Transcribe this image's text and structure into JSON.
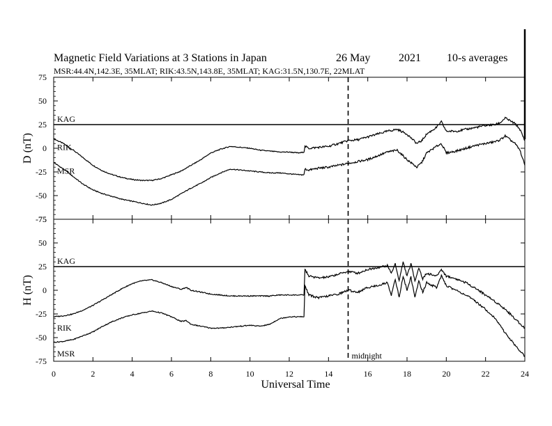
{
  "header": {
    "title_main": "Magnetic Field Variations at 3 Stations in Japan",
    "title_date": "26 May",
    "title_year": "2021",
    "title_avg": "10-s averages",
    "stations_line": "MSR:44.4N,142.3E, 35MLAT;  RIK:43.5N,143.8E, 35MLAT;  KAG:31.5N,130.7E, 22MLAT"
  },
  "colors": {
    "line": "#000000",
    "background": "#ffffff"
  },
  "chart_data": [
    {
      "type": "line",
      "panel": "D",
      "ylabel": "D (nT)",
      "xlabel": "Universal Time",
      "xlim": [
        0,
        24
      ],
      "ylim": [
        -75,
        75
      ],
      "x_ticks": [
        0,
        2,
        4,
        6,
        8,
        10,
        12,
        14,
        16,
        18,
        20,
        22,
        24
      ],
      "y_ticks": [
        -75,
        -50,
        -25,
        0,
        25,
        50,
        75
      ],
      "grid": false,
      "reference_line": {
        "y": 25,
        "label": "KAG"
      },
      "x": [
        0,
        0.5,
        1,
        1.5,
        2,
        2.5,
        3,
        3.5,
        4,
        4.5,
        5,
        5.5,
        6,
        6.5,
        7,
        7.5,
        8,
        8.5,
        9,
        9.5,
        10,
        10.5,
        11,
        11.5,
        12,
        12.5,
        12.75,
        12.8,
        13,
        13.5,
        14,
        14.5,
        15,
        15.5,
        16,
        16.5,
        17,
        17.5,
        18,
        18.5,
        18.75,
        19,
        19.5,
        19.75,
        20,
        20.5,
        21,
        21.5,
        22,
        22.5,
        22.75,
        23,
        23.5,
        23.75,
        24
      ],
      "series": [
        {
          "name": "RIK",
          "values": [
            10,
            5,
            -2,
            -10,
            -18,
            -24,
            -28,
            -31,
            -33,
            -34,
            -34,
            -32,
            -28,
            -24,
            -18,
            -12,
            -5,
            -1,
            2,
            1,
            0,
            -2,
            -3,
            -4,
            -4,
            -5,
            -4,
            2,
            0,
            1,
            2,
            5,
            8,
            9,
            12,
            15,
            18,
            20,
            15,
            5,
            8,
            15,
            22,
            28,
            18,
            18,
            20,
            22,
            24,
            25,
            27,
            32,
            26,
            20,
            8
          ]
        },
        {
          "name": "MSR",
          "values": [
            -15,
            -22,
            -30,
            -38,
            -44,
            -48,
            -51,
            -54,
            -56,
            -58,
            -60,
            -58,
            -54,
            -48,
            -42,
            -37,
            -31,
            -26,
            -22,
            -23,
            -24,
            -25,
            -26,
            -26,
            -27,
            -28,
            -28,
            -22,
            -23,
            -21,
            -20,
            -18,
            -16,
            -14,
            -12,
            -8,
            -4,
            -2,
            -12,
            -20,
            -15,
            -5,
            2,
            5,
            -5,
            -3,
            0,
            3,
            5,
            7,
            9,
            13,
            5,
            -2,
            -18
          ]
        }
      ]
    },
    {
      "type": "line",
      "panel": "H",
      "ylabel": "H (nT)",
      "xlabel": "Universal Time",
      "xlim": [
        0,
        24
      ],
      "ylim": [
        -75,
        75
      ],
      "x_ticks": [
        0,
        2,
        4,
        6,
        8,
        10,
        12,
        14,
        16,
        18,
        20,
        22,
        24
      ],
      "y_ticks": [
        -75,
        -50,
        -25,
        0,
        25,
        50,
        75
      ],
      "grid": false,
      "reference_line": {
        "y": 25,
        "label": "KAG"
      },
      "vertical_marker": {
        "x": 15,
        "label": "midnight"
      },
      "x": [
        0,
        0.5,
        1,
        1.5,
        2,
        2.5,
        3,
        3.5,
        4,
        4.5,
        5,
        5.5,
        6,
        6.5,
        6.75,
        7,
        7.5,
        8,
        8.5,
        9,
        9.5,
        10,
        10.5,
        11,
        11.5,
        12,
        12.5,
        12.75,
        12.8,
        13,
        13.5,
        14,
        14.5,
        15,
        15.5,
        16,
        16.5,
        17,
        17.2,
        17.4,
        17.6,
        17.8,
        18,
        18.2,
        18.4,
        18.6,
        18.8,
        19,
        19.5,
        19.75,
        20,
        20.5,
        21,
        21.5,
        22,
        22.5,
        23,
        23.5,
        24
      ],
      "series": [
        {
          "name": "RIK",
          "values": [
            -28,
            -27,
            -25,
            -21,
            -16,
            -10,
            -4,
            2,
            7,
            10,
            11,
            8,
            4,
            1,
            3,
            0,
            -2,
            -4,
            -5,
            -6,
            -6,
            -6,
            -6,
            -6,
            -5,
            -5,
            -5,
            -5,
            22,
            15,
            13,
            14,
            17,
            20,
            18,
            22,
            24,
            26,
            18,
            28,
            10,
            30,
            15,
            28,
            10,
            24,
            12,
            18,
            15,
            22,
            15,
            12,
            8,
            2,
            -5,
            -12,
            -20,
            -30,
            -40
          ]
        },
        {
          "name": "MSR",
          "values": [
            -55,
            -54,
            -52,
            -48,
            -44,
            -38,
            -33,
            -29,
            -26,
            -24,
            -22,
            -24,
            -28,
            -33,
            -32,
            -36,
            -38,
            -40,
            -40,
            -39,
            -38,
            -37,
            -38,
            -36,
            -30,
            -28,
            -28,
            -28,
            5,
            -5,
            -8,
            -6,
            -4,
            0,
            -2,
            3,
            5,
            8,
            -5,
            12,
            -8,
            15,
            0,
            14,
            -8,
            10,
            -2,
            8,
            3,
            15,
            5,
            0,
            -5,
            -12,
            -20,
            -30,
            -45,
            -58,
            -70
          ]
        }
      ]
    }
  ]
}
